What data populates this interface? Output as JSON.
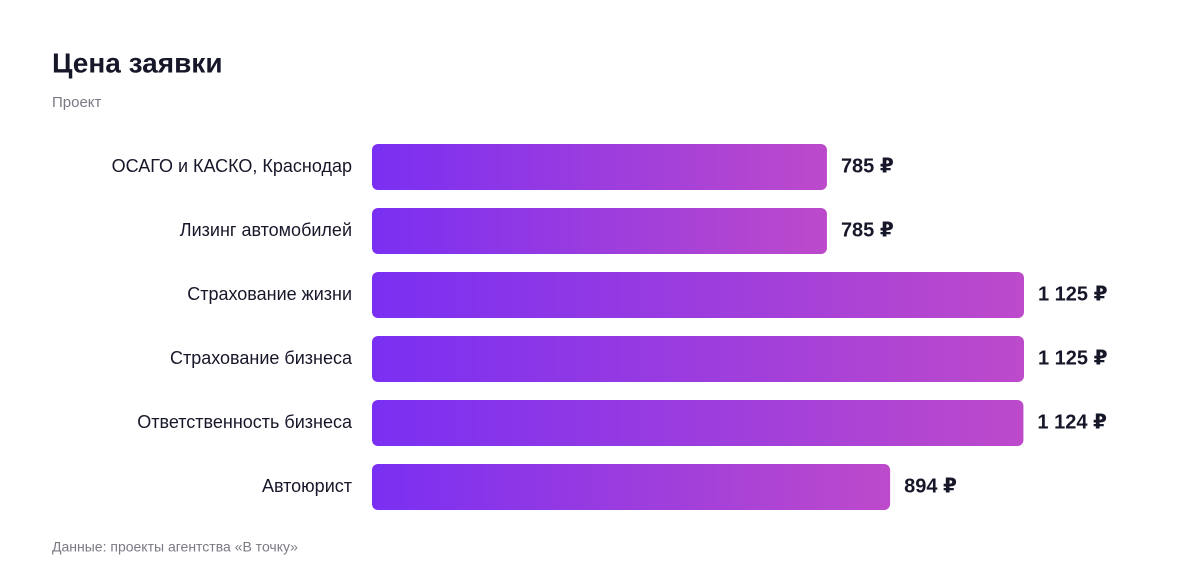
{
  "chart_data": {
    "type": "bar",
    "orientation": "horizontal",
    "title": "Цена заявки",
    "subtitle": "Проект",
    "categories": [
      "ОСАГО и КАСКО, Краснодар",
      "Лизинг автомобилей",
      "Страхование жизни",
      "Страхование бизнеса",
      "Ответственность бизнеса",
      "Автоюрист"
    ],
    "values": [
      785,
      785,
      1125,
      1125,
      1124,
      894
    ],
    "value_labels": [
      "785 ₽",
      "785 ₽",
      "1 125 ₽",
      "1 125 ₽",
      "1 124 ₽",
      "894 ₽"
    ],
    "gradient_colors": [
      "#7a2ff2",
      "#bd4acb"
    ],
    "source": "Данные: проекты агентства «В точку»"
  }
}
